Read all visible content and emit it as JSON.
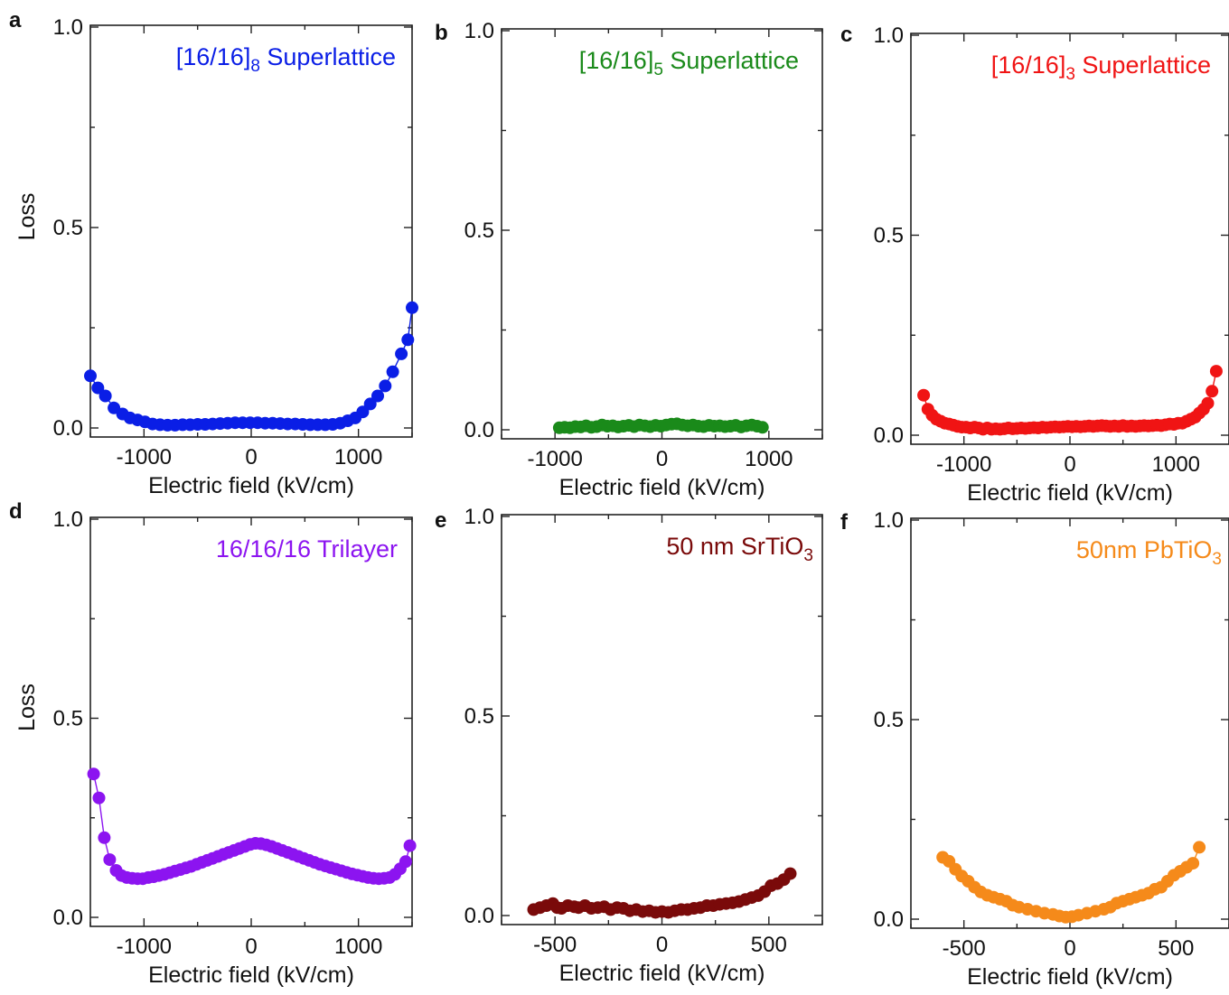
{
  "chart_data": [
    {
      "panel": "a",
      "type": "scatter",
      "title_main": "[16/16]",
      "title_sub": "8",
      "title_rest": " Superlattice",
      "color": "#0a1ee6",
      "xlabel": "Electric field (kV/cm)",
      "ylabel": "Loss",
      "xlim": [
        -1500,
        1500
      ],
      "ylim": [
        0,
        1
      ],
      "xticks": [
        -1000,
        0,
        1000
      ],
      "yticks": [
        0.0,
        0.5,
        1.0
      ],
      "connected": true,
      "x": [
        -1500,
        -1430,
        -1360,
        -1280,
        -1200,
        -1130,
        -1060,
        -990,
        -920,
        -850,
        -780,
        -710,
        -640,
        -570,
        -500,
        -430,
        -360,
        -290,
        -220,
        -150,
        -80,
        -10,
        60,
        130,
        200,
        270,
        340,
        410,
        480,
        550,
        620,
        690,
        760,
        830,
        900,
        970,
        1040,
        1110,
        1180,
        1250,
        1320,
        1400,
        1460,
        1500
      ],
      "y": [
        0.13,
        0.1,
        0.08,
        0.05,
        0.035,
        0.025,
        0.02,
        0.015,
        0.01,
        0.008,
        0.007,
        0.007,
        0.008,
        0.008,
        0.009,
        0.009,
        0.01,
        0.011,
        0.012,
        0.013,
        0.013,
        0.013,
        0.013,
        0.012,
        0.012,
        0.011,
        0.01,
        0.01,
        0.009,
        0.008,
        0.008,
        0.008,
        0.009,
        0.012,
        0.018,
        0.025,
        0.04,
        0.06,
        0.08,
        0.105,
        0.14,
        0.185,
        0.22,
        0.3
      ]
    },
    {
      "panel": "b",
      "type": "scatter",
      "title_main": "[16/16]",
      "title_sub": "5",
      "title_rest": " Superlattice",
      "color": "#1a8a1a",
      "xlabel": "Electric field (kV/cm)",
      "ylabel": "",
      "xlim": [
        -1500,
        1500
      ],
      "ylim": [
        0,
        1
      ],
      "xticks": [
        -1000,
        0,
        1000
      ],
      "yticks": [
        0.0,
        0.5,
        1.0
      ],
      "connected": false,
      "x": [
        -960,
        -910,
        -860,
        -810,
        -760,
        -710,
        -660,
        -610,
        -560,
        -510,
        -460,
        -410,
        -360,
        -310,
        -260,
        -210,
        -160,
        -110,
        -60,
        -10,
        40,
        90,
        140,
        190,
        240,
        290,
        340,
        390,
        440,
        490,
        540,
        590,
        640,
        690,
        740,
        790,
        840,
        890,
        940
      ],
      "y": [
        0.005,
        0.006,
        0.005,
        0.008,
        0.007,
        0.01,
        0.006,
        0.008,
        0.012,
        0.009,
        0.01,
        0.007,
        0.009,
        0.011,
        0.008,
        0.012,
        0.01,
        0.008,
        0.011,
        0.009,
        0.012,
        0.014,
        0.015,
        0.012,
        0.01,
        0.012,
        0.009,
        0.008,
        0.011,
        0.009,
        0.01,
        0.008,
        0.009,
        0.011,
        0.007,
        0.01,
        0.012,
        0.009,
        0.006
      ]
    },
    {
      "panel": "c",
      "type": "scatter",
      "title_main": "[16/16]",
      "title_sub": "3",
      "title_rest": " Superlattice",
      "color": "#f01414",
      "xlabel": "Electric field (kV/cm)",
      "ylabel": "",
      "xlim": [
        -1500,
        1500
      ],
      "ylim": [
        0,
        1
      ],
      "xticks": [
        -1000,
        0,
        1000
      ],
      "yticks": [
        0.0,
        0.5,
        1.0
      ],
      "connected": true,
      "x": [
        -1380,
        -1340,
        -1300,
        -1260,
        -1220,
        -1180,
        -1140,
        -1100,
        -1060,
        -1020,
        -980,
        -940,
        -900,
        -860,
        -820,
        -780,
        -740,
        -700,
        -660,
        -620,
        -580,
        -540,
        -500,
        -460,
        -420,
        -380,
        -340,
        -300,
        -260,
        -220,
        -180,
        -140,
        -100,
        -60,
        -20,
        20,
        60,
        100,
        140,
        180,
        220,
        260,
        300,
        340,
        380,
        420,
        460,
        500,
        540,
        580,
        620,
        660,
        700,
        740,
        780,
        820,
        860,
        900,
        940,
        980,
        1020,
        1060,
        1100,
        1140,
        1180,
        1220,
        1260,
        1300,
        1340,
        1380
      ],
      "y": [
        0.1,
        0.065,
        0.05,
        0.04,
        0.035,
        0.03,
        0.028,
        0.025,
        0.022,
        0.02,
        0.02,
        0.018,
        0.02,
        0.018,
        0.015,
        0.018,
        0.015,
        0.016,
        0.015,
        0.016,
        0.018,
        0.016,
        0.017,
        0.018,
        0.017,
        0.018,
        0.019,
        0.018,
        0.02,
        0.019,
        0.02,
        0.021,
        0.02,
        0.021,
        0.022,
        0.021,
        0.022,
        0.021,
        0.022,
        0.023,
        0.022,
        0.023,
        0.024,
        0.023,
        0.022,
        0.023,
        0.022,
        0.024,
        0.022,
        0.023,
        0.022,
        0.023,
        0.024,
        0.023,
        0.024,
        0.025,
        0.024,
        0.026,
        0.028,
        0.027,
        0.03,
        0.03,
        0.035,
        0.04,
        0.045,
        0.055,
        0.065,
        0.08,
        0.11,
        0.16
      ]
    },
    {
      "panel": "d",
      "type": "scatter",
      "title_main": "16/16/16 Trilayer",
      "title_sub": "",
      "title_rest": "",
      "color": "#8c14f0",
      "xlabel": "Electric field (kV/cm)",
      "ylabel": "Loss",
      "xlim": [
        -1500,
        1500
      ],
      "ylim": [
        0,
        1
      ],
      "xticks": [
        -1000,
        0,
        1000
      ],
      "yticks": [
        0.0,
        0.5,
        1.0
      ],
      "connected": true,
      "x": [
        -1470,
        -1420,
        -1370,
        -1320,
        -1260,
        -1210,
        -1160,
        -1110,
        -1060,
        -1010,
        -960,
        -910,
        -860,
        -810,
        -760,
        -710,
        -660,
        -610,
        -560,
        -510,
        -460,
        -410,
        -360,
        -310,
        -260,
        -210,
        -160,
        -110,
        -60,
        -10,
        40,
        90,
        140,
        190,
        240,
        290,
        340,
        390,
        440,
        490,
        540,
        590,
        640,
        690,
        740,
        790,
        840,
        890,
        940,
        990,
        1040,
        1090,
        1140,
        1190,
        1240,
        1290,
        1340,
        1390,
        1440,
        1480
      ],
      "y": [
        0.36,
        0.3,
        0.2,
        0.145,
        0.118,
        0.105,
        0.1,
        0.098,
        0.097,
        0.097,
        0.1,
        0.102,
        0.105,
        0.108,
        0.112,
        0.116,
        0.12,
        0.124,
        0.128,
        0.133,
        0.138,
        0.143,
        0.148,
        0.153,
        0.158,
        0.163,
        0.168,
        0.173,
        0.178,
        0.183,
        0.186,
        0.185,
        0.182,
        0.178,
        0.173,
        0.168,
        0.163,
        0.158,
        0.153,
        0.148,
        0.143,
        0.138,
        0.133,
        0.129,
        0.125,
        0.121,
        0.117,
        0.113,
        0.109,
        0.106,
        0.103,
        0.1,
        0.098,
        0.097,
        0.098,
        0.1,
        0.108,
        0.122,
        0.14,
        0.18
      ]
    },
    {
      "panel": "e",
      "type": "scatter",
      "title_main": "50 nm SrTiO",
      "title_sub": "3",
      "title_rest": "",
      "color": "#7a0a0a",
      "xlabel": "Electric field (kV/cm)",
      "ylabel": "",
      "xlim": [
        -750,
        750
      ],
      "ylim": [
        0,
        1
      ],
      "xticks": [
        -500,
        0,
        500
      ],
      "yticks": [
        0.0,
        0.5,
        1.0
      ],
      "connected": false,
      "x": [
        -600,
        -570,
        -540,
        -510,
        -490,
        -470,
        -440,
        -410,
        -390,
        -360,
        -330,
        -300,
        -270,
        -240,
        -210,
        -180,
        -150,
        -120,
        -90,
        -60,
        -30,
        0,
        30,
        60,
        90,
        120,
        150,
        180,
        210,
        240,
        270,
        300,
        330,
        360,
        390,
        420,
        450,
        480,
        510,
        540,
        570,
        600
      ],
      "y": [
        0.015,
        0.02,
        0.025,
        0.03,
        0.02,
        0.018,
        0.025,
        0.022,
        0.02,
        0.025,
        0.018,
        0.02,
        0.022,
        0.015,
        0.02,
        0.018,
        0.012,
        0.015,
        0.01,
        0.012,
        0.008,
        0.01,
        0.008,
        0.012,
        0.015,
        0.015,
        0.018,
        0.02,
        0.025,
        0.025,
        0.028,
        0.03,
        0.032,
        0.035,
        0.04,
        0.045,
        0.05,
        0.06,
        0.075,
        0.08,
        0.09,
        0.105
      ]
    },
    {
      "panel": "f",
      "type": "scatter",
      "title_main": "50nm PbTiO",
      "title_sub": "3",
      "title_rest": "",
      "color": "#f58a1a",
      "xlabel": "Electric field (kV/cm)",
      "ylabel": "",
      "xlim": [
        -750,
        750
      ],
      "ylim": [
        0,
        1
      ],
      "xticks": [
        -500,
        0,
        500
      ],
      "yticks": [
        0.0,
        0.5,
        1.0
      ],
      "connected": true,
      "x": [
        -600,
        -570,
        -540,
        -510,
        -480,
        -450,
        -420,
        -390,
        -360,
        -330,
        -300,
        -270,
        -240,
        -200,
        -160,
        -120,
        -80,
        -50,
        -20,
        10,
        40,
        80,
        120,
        160,
        190,
        220,
        250,
        280,
        310,
        340,
        370,
        400,
        430,
        460,
        490,
        520,
        550,
        580,
        610
      ],
      "y": [
        0.155,
        0.145,
        0.125,
        0.108,
        0.095,
        0.08,
        0.068,
        0.06,
        0.055,
        0.05,
        0.045,
        0.035,
        0.03,
        0.025,
        0.02,
        0.015,
        0.012,
        0.008,
        0.005,
        0.006,
        0.01,
        0.015,
        0.02,
        0.025,
        0.03,
        0.04,
        0.045,
        0.05,
        0.055,
        0.06,
        0.065,
        0.075,
        0.08,
        0.095,
        0.11,
        0.12,
        0.13,
        0.14,
        0.18
      ]
    }
  ]
}
